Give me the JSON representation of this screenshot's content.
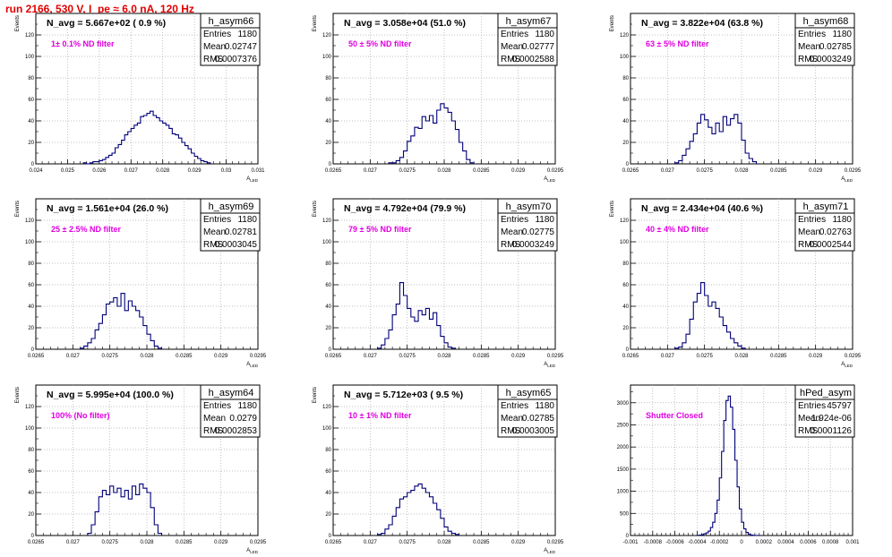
{
  "page_title": "run 2166,   530 V, I_pe ≈ 6.0 nA, 120 Hz",
  "colors": {
    "title": "#e00000",
    "histogram": "#00007a",
    "annotation": "#e000e0",
    "grid": "#aaaaaa"
  },
  "stats_labels": {
    "entries": "Entries",
    "mean": "Mean",
    "rms": "RMS"
  },
  "chart_data": [
    {
      "type": "histogram",
      "name": "h_asym66",
      "title": "N_avg = 5.667e+02 ( 0.9 %)",
      "annotation": "1± 0.1% ND filter",
      "stats": {
        "entries": "1180",
        "mean": "0.02747",
        "rms": "0.0007376"
      },
      "ylabel": "Events",
      "xlabel": "A_LED",
      "xlim": [
        0.024,
        0.031
      ],
      "ylim": [
        0,
        140
      ],
      "grid": true,
      "xticks": [
        "0.024",
        "0.025",
        "0.026",
        "0.027",
        "0.028",
        "0.029",
        "0.03",
        "0.031"
      ],
      "yticks": [
        "0",
        "20",
        "40",
        "60",
        "80",
        "100",
        "120"
      ],
      "bins": {
        "start": 0.0255,
        "width": 0.0001,
        "values": [
          1,
          0,
          1,
          2,
          2,
          3,
          4,
          6,
          8,
          10,
          15,
          18,
          22,
          27,
          30,
          33,
          36,
          38,
          44,
          45,
          47,
          49,
          45,
          43,
          40,
          38,
          36,
          33,
          28,
          27,
          24,
          20,
          17,
          14,
          10,
          7,
          5,
          3,
          2,
          1
        ]
      }
    },
    {
      "type": "histogram",
      "name": "h_asym67",
      "title": "N_avg = 3.058e+04 (51.0 %)",
      "annotation": "50 ± 5% ND filter",
      "stats": {
        "entries": "1180",
        "mean": "0.02777",
        "rms": "0.0002588"
      },
      "ylabel": "Events",
      "xlabel": "A_LED",
      "xlim": [
        0.0265,
        0.0295
      ],
      "ylim": [
        0,
        140
      ],
      "grid": true,
      "xticks": [
        "0.0265",
        "0.027",
        "0.0275",
        "0.028",
        "0.0285",
        "0.029",
        "0.0295"
      ],
      "yticks": [
        "0",
        "20",
        "40",
        "60",
        "80",
        "100",
        "120"
      ],
      "bins": {
        "start": 0.02725,
        "width": 5e-05,
        "values": [
          1,
          1,
          3,
          6,
          12,
          21,
          26,
          34,
          33,
          44,
          40,
          45,
          38,
          50,
          56,
          52,
          48,
          40,
          32,
          20,
          12,
          4,
          1
        ]
      }
    },
    {
      "type": "histogram",
      "name": "h_asym68",
      "title": "N_avg = 3.822e+04 (63.8 %)",
      "annotation": "63 ± 5% ND filter",
      "stats": {
        "entries": "1180",
        "mean": "0.02785",
        "rms": "0.0003249"
      },
      "ylabel": "Events",
      "xlabel": "A_LED",
      "xlim": [
        0.0265,
        0.0295
      ],
      "ylim": [
        0,
        140
      ],
      "grid": true,
      "xticks": [
        "0.0265",
        "0.027",
        "0.0275",
        "0.028",
        "0.0285",
        "0.029",
        "0.0295"
      ],
      "yticks": [
        "0",
        "20",
        "40",
        "60",
        "80",
        "100",
        "120"
      ],
      "bins": {
        "start": 0.0271,
        "width": 5e-05,
        "values": [
          1,
          3,
          8,
          14,
          21,
          28,
          38,
          46,
          41,
          34,
          28,
          38,
          30,
          44,
          36,
          42,
          46,
          38,
          22,
          10,
          5,
          2
        ]
      }
    },
    {
      "type": "histogram",
      "name": "h_asym69",
      "title": "N_avg = 1.561e+04 (26.0 %)",
      "annotation": "25 ± 2.5% ND filter",
      "stats": {
        "entries": "1180",
        "mean": "0.02781",
        "rms": "0.0003045"
      },
      "ylabel": "Events",
      "xlabel": "A_LED",
      "xlim": [
        0.0265,
        0.0295
      ],
      "ylim": [
        0,
        140
      ],
      "grid": true,
      "xticks": [
        "0.0265",
        "0.027",
        "0.0275",
        "0.028",
        "0.0285",
        "0.029",
        "0.0295"
      ],
      "yticks": [
        "0",
        "20",
        "40",
        "60",
        "80",
        "100",
        "120"
      ],
      "bins": {
        "start": 0.0271,
        "width": 5e-05,
        "values": [
          1,
          3,
          6,
          10,
          18,
          24,
          32,
          42,
          44,
          48,
          40,
          52,
          36,
          45,
          40,
          36,
          30,
          22,
          14,
          8,
          3,
          1
        ]
      }
    },
    {
      "type": "histogram",
      "name": "h_asym70",
      "title": "N_avg = 4.792e+04 (79.9 %)",
      "annotation": "79 ± 5% ND filter",
      "stats": {
        "entries": "1180",
        "mean": "0.02775",
        "rms": "0.0003249"
      },
      "ylabel": "Events",
      "xlabel": "A_LED",
      "xlim": [
        0.0265,
        0.0295
      ],
      "ylim": [
        0,
        140
      ],
      "grid": true,
      "xticks": [
        "0.0265",
        "0.027",
        "0.0275",
        "0.028",
        "0.0285",
        "0.029",
        "0.0295"
      ],
      "yticks": [
        "0",
        "20",
        "40",
        "60",
        "80",
        "100",
        "120"
      ],
      "bins": {
        "start": 0.0271,
        "width": 5e-05,
        "values": [
          1,
          4,
          10,
          18,
          32,
          42,
          62,
          50,
          38,
          30,
          26,
          36,
          32,
          38,
          28,
          34,
          22,
          12,
          6,
          2,
          1
        ]
      }
    },
    {
      "type": "histogram",
      "name": "h_asym71",
      "title": "N_avg = 2.434e+04 (40.6 %)",
      "annotation": "40 ± 4% ND filter",
      "stats": {
        "entries": "1180",
        "mean": "0.02763",
        "rms": "0.0002544"
      },
      "ylabel": "Events",
      "xlabel": "A_LED",
      "xlim": [
        0.0265,
        0.0295
      ],
      "ylim": [
        0,
        140
      ],
      "grid": true,
      "xticks": [
        "0.0265",
        "0.027",
        "0.0275",
        "0.028",
        "0.0285",
        "0.029",
        "0.0295"
      ],
      "yticks": [
        "0",
        "20",
        "40",
        "60",
        "80",
        "100",
        "120"
      ],
      "bins": {
        "start": 0.0271,
        "width": 5e-05,
        "values": [
          1,
          2,
          6,
          14,
          28,
          44,
          52,
          62,
          50,
          40,
          44,
          38,
          30,
          22,
          16,
          10,
          6,
          3,
          1
        ]
      }
    },
    {
      "type": "histogram",
      "name": "h_asym64",
      "title": "N_avg = 5.995e+04 (100.0 %)",
      "annotation": "100% (No filter)",
      "stats": {
        "entries": "1180",
        "mean": "0.0279",
        "rms": "0.0002853"
      },
      "ylabel": "Events",
      "xlabel": "A_LED",
      "xlim": [
        0.0265,
        0.0295
      ],
      "ylim": [
        0,
        140
      ],
      "grid": true,
      "xticks": [
        "0.0265",
        "0.027",
        "0.0275",
        "0.028",
        "0.0285",
        "0.029",
        "0.0295"
      ],
      "yticks": [
        "0",
        "20",
        "40",
        "60",
        "80",
        "100",
        "120"
      ],
      "bins": {
        "start": 0.0272,
        "width": 5e-05,
        "values": [
          2,
          10,
          22,
          36,
          42,
          38,
          46,
          40,
          44,
          36,
          42,
          34,
          46,
          38,
          48,
          44,
          40,
          26,
          10,
          2
        ]
      }
    },
    {
      "type": "histogram",
      "name": "h_asym65",
      "title": "N_avg = 5.712e+03 ( 9.5 %)",
      "annotation": "10 ± 1% ND filter",
      "stats": {
        "entries": "1180",
        "mean": "0.02785",
        "rms": "0.0003005"
      },
      "ylabel": "Events",
      "xlabel": "A_LED",
      "xlim": [
        0.0265,
        0.0295
      ],
      "ylim": [
        0,
        140
      ],
      "grid": true,
      "xticks": [
        "0.0265",
        "0.027",
        "0.0275",
        "0.028",
        "0.0285",
        "0.029",
        "0.0295"
      ],
      "yticks": [
        "0",
        "20",
        "40",
        "60",
        "80",
        "100",
        "120"
      ],
      "bins": {
        "start": 0.0271,
        "width": 5e-05,
        "values": [
          1,
          2,
          6,
          10,
          18,
          26,
          34,
          36,
          40,
          42,
          46,
          48,
          44,
          40,
          36,
          30,
          24,
          16,
          8,
          4,
          2,
          1
        ]
      }
    },
    {
      "type": "histogram",
      "name": "hPed_asym",
      "title": "",
      "annotation": "Shutter Closed",
      "stats": {
        "entries": "45797",
        "mean": "-1.924e-06",
        "rms": "0.0001126"
      },
      "ylabel": "",
      "xlabel": "",
      "xlim": [
        -0.001,
        0.001
      ],
      "ylim": [
        0,
        3400
      ],
      "grid": true,
      "xticks": [
        "-0.001",
        "-0.0008",
        "-0.0006",
        "-0.0004",
        "-0.0002",
        "0",
        "0.0002",
        "0.0004",
        "0.0006",
        "0.0008",
        "0.001"
      ],
      "yticks": [
        "0",
        "500",
        "1000",
        "1500",
        "2000",
        "2500",
        "3000"
      ],
      "bins": {
        "start": -0.0004,
        "width": 2e-05,
        "values": [
          5,
          10,
          20,
          40,
          60,
          100,
          180,
          300,
          500,
          800,
          1300,
          1900,
          2600,
          3050,
          3150,
          2900,
          2400,
          1700,
          1100,
          600,
          300,
          150,
          70,
          30,
          12,
          5,
          2,
          1
        ]
      }
    }
  ]
}
